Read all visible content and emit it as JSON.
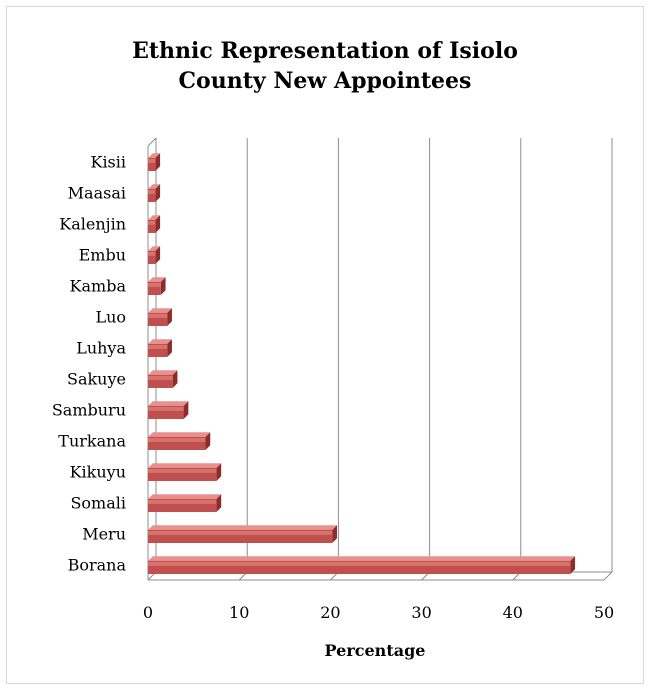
{
  "chart_data": {
    "type": "bar",
    "orientation": "horizontal",
    "style": "3d",
    "title_lines": [
      "Ethnic Representation of Isiolo",
      "County New Appointees"
    ],
    "xlabel": "Percentage",
    "ylabel": "",
    "categories": [
      "Borana",
      "Meru",
      "Somali",
      "Kikuyu",
      "Turkana",
      "Samburu",
      "Sakuye",
      "Luhya",
      "Luo",
      "Kamba",
      "Embu",
      "Kalenjin",
      "Maasai",
      "Kisii"
    ],
    "values": [
      46.3,
      20.2,
      7.5,
      7.5,
      6.3,
      3.9,
      2.7,
      2.1,
      2.1,
      1.4,
      0.8,
      0.8,
      0.8,
      0.8
    ],
    "xlim": [
      0,
      50
    ],
    "xticks": [
      "0",
      "10",
      "20",
      "30",
      "40",
      "50"
    ],
    "grid": true,
    "legend": "none",
    "colors": {
      "bar_main": "#c0504d",
      "bar_light": "#e8908d",
      "bar_dark": "#8c2d2a",
      "grid": "#8c8c8c"
    }
  }
}
